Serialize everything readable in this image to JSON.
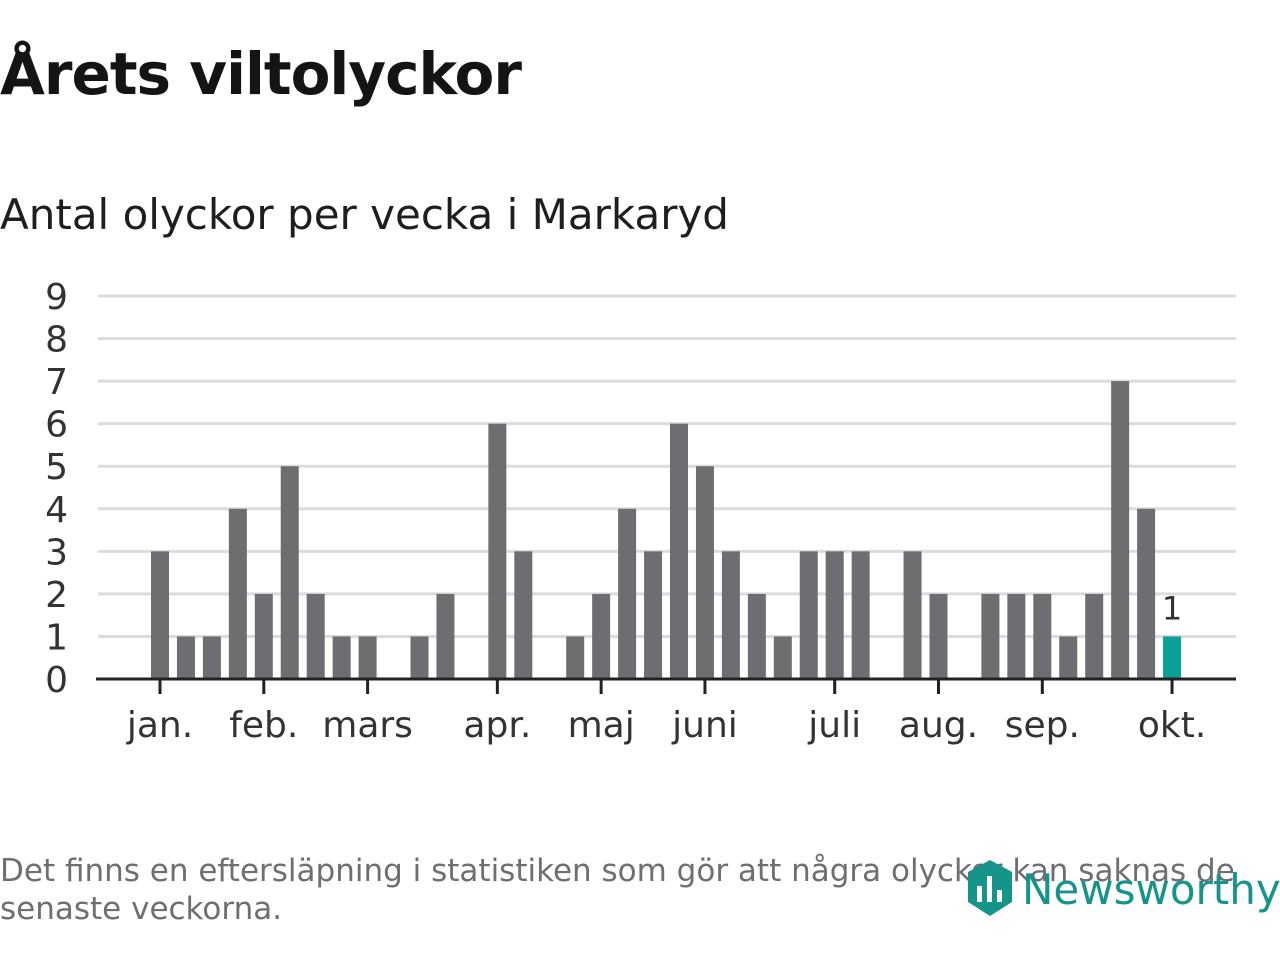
{
  "title": "Årets viltolyckor",
  "subtitle": "Antal olyckor per vecka i Markaryd",
  "footnote": "Det finns en eftersläpning i statistiken som gör att några olyckor kan saknas de senaste veckorna.",
  "brand": {
    "name": "Newsworthy",
    "icon": "newsworthy-logo-icon"
  },
  "colors": {
    "bar": "#6e6d72",
    "highlight": "#0aa096",
    "grid": "#dcdcdc",
    "axis": "#222222",
    "text": "#333333"
  },
  "chart_data": {
    "type": "bar",
    "title": "Antal olyckor per vecka i Markaryd",
    "xlabel": "",
    "ylabel": "",
    "ylim": [
      0,
      9
    ],
    "yticks": [
      "0",
      "1",
      "2",
      "3",
      "4",
      "5",
      "6",
      "7",
      "8",
      "9"
    ],
    "grid": true,
    "x_ticks": [
      "jan.",
      "feb.",
      "mars",
      "apr.",
      "maj",
      "juni",
      "juli",
      "aug.",
      "sep.",
      "okt."
    ],
    "x_tick_weeks": [
      1,
      5,
      9,
      14,
      18,
      22,
      27,
      31,
      35,
      40
    ],
    "weeks": [
      1,
      2,
      3,
      4,
      5,
      6,
      7,
      8,
      9,
      10,
      11,
      12,
      13,
      14,
      15,
      16,
      17,
      18,
      19,
      20,
      21,
      22,
      23,
      24,
      25,
      26,
      27,
      28,
      29,
      30,
      31,
      32,
      33,
      34,
      35,
      36,
      37,
      38,
      39,
      40
    ],
    "values": [
      3,
      1,
      1,
      4,
      2,
      5,
      2,
      1,
      1,
      0,
      1,
      2,
      0,
      6,
      3,
      0,
      1,
      2,
      4,
      3,
      6,
      5,
      3,
      2,
      1,
      3,
      3,
      3,
      0,
      3,
      2,
      0,
      2,
      2,
      2,
      1,
      2,
      7,
      4,
      1
    ],
    "highlight_week": 40,
    "highlight_label": "1"
  }
}
